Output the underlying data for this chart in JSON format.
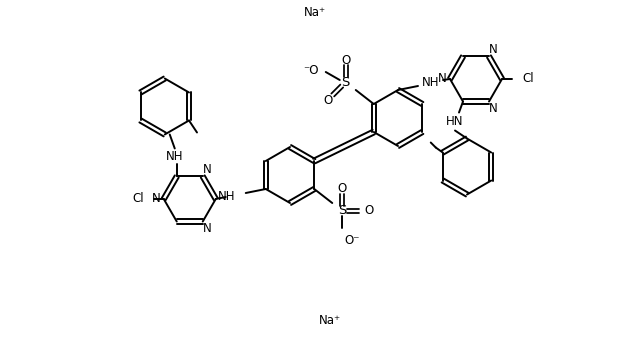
{
  "bg_color": "#ffffff",
  "line_color": "#000000",
  "text_color": "#000000",
  "line_width": 1.4,
  "font_size": 8.5,
  "ring_r": 28,
  "triaz_r": 26,
  "na_upper": [
    315,
    325
  ],
  "na_lower": [
    330,
    18
  ]
}
